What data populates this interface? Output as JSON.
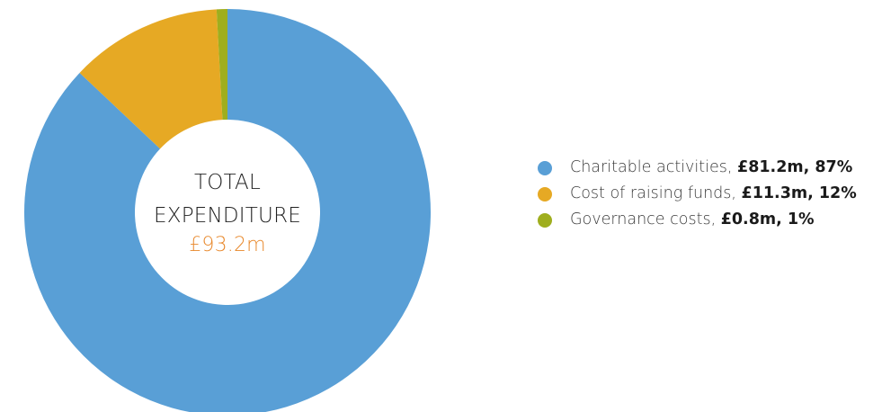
{
  "chart_data": {
    "type": "pie",
    "center": {
      "line1": "TOTAL",
      "line2": "EXPENDITURE",
      "amount": "£93.2m"
    },
    "series": [
      {
        "name": "Charitable activities",
        "amount": "£81.2m",
        "percent_label": "87%",
        "value": 81.2,
        "color": "#599fd6"
      },
      {
        "name": "Cost of raising funds",
        "amount": "£11.3m",
        "percent_label": "12%",
        "value": 11.3,
        "color": "#e6a924"
      },
      {
        "name": "Governance costs",
        "amount": "£0.8m",
        "percent_label": "1%",
        "value": 0.8,
        "color": "#9fae1e"
      }
    ],
    "legend_position": "right"
  }
}
